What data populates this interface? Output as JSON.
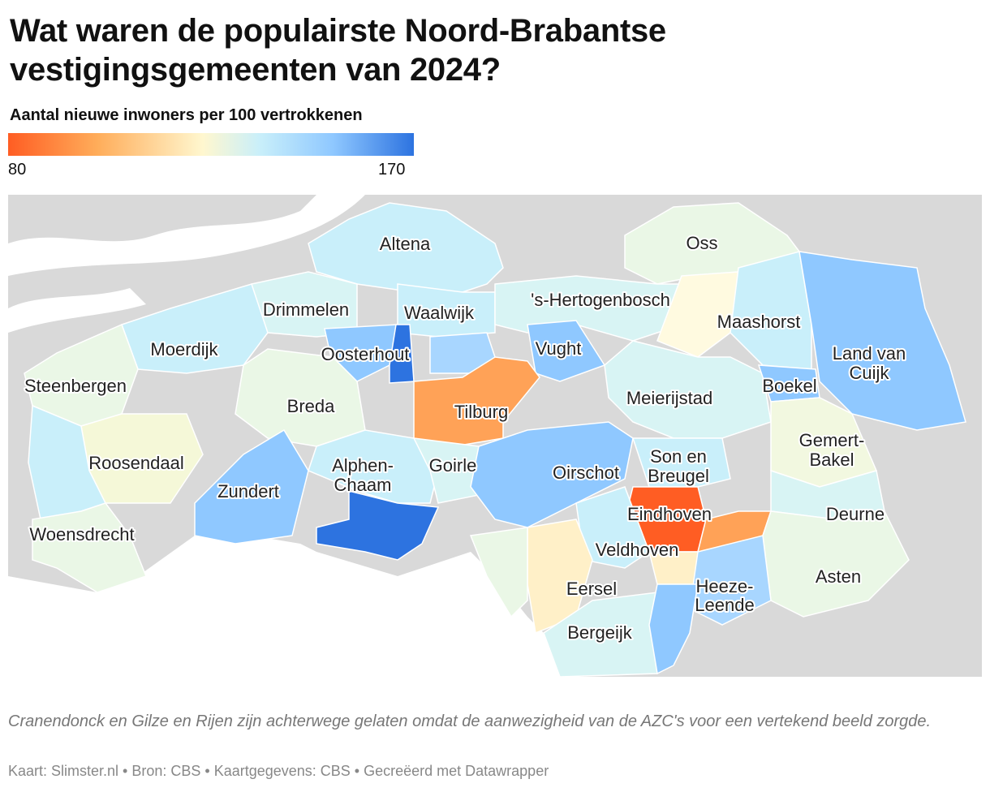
{
  "header": {
    "title": "Wat waren de populairste Noord-Brabantse vestigingsgemeenten van 2024?",
    "subtitle": "Aantal nieuwe inwoners per 100 vertrokkenen"
  },
  "legend": {
    "min": "80",
    "max": "170",
    "colors": [
      "#ff5d23",
      "#ffad5a",
      "#fff7cf",
      "#c9effa",
      "#8fc8ff",
      "#2d73e0"
    ]
  },
  "map": {
    "background_color": "#d9d9d9",
    "water_color": "#ffffff",
    "labels": {
      "altena": "Altena",
      "oss": "Oss",
      "drimmelen": "Drimmelen",
      "waalwijk": "Waalwijk",
      "hertogenbosch": "'s-Hertogenbosch",
      "maashorst": "Maashorst",
      "moerdijk": "Moerdijk",
      "oosterhout": "Oosterhout",
      "vught": "Vught",
      "land_van_cuijk_1": "Land van",
      "land_van_cuijk_2": "Cuijk",
      "steenbergen": "Steenbergen",
      "breda": "Breda",
      "tilburg": "Tilburg",
      "meierijstad": "Meierijstad",
      "boekel": "Boekel",
      "gemert_bakel_1": "Gemert-",
      "gemert_bakel_2": "Bakel",
      "roosendaal": "Roosendaal",
      "alphen_chaam_1": "Alphen-",
      "alphen_chaam_2": "Chaam",
      "goirle": "Goirle",
      "oirschot": "Oirschot",
      "son_en_breugel_1": "Son en",
      "son_en_breugel_2": "Breugel",
      "zundert": "Zundert",
      "eindhoven": "Eindhoven",
      "deurne": "Deurne",
      "woensdrecht": "Woensdrecht",
      "veldhoven": "Veldhoven",
      "asten": "Asten",
      "eersel": "Eersel",
      "heeze_leende_1": "Heeze-",
      "heeze_leende_2": "Leende",
      "bergeijk": "Bergeijk"
    }
  },
  "note": "Cranendonck en Gilze en Rijen zijn achterwege gelaten omdat de aanwezigheid van de AZC's voor een vertekend beeld zorgde.",
  "footer": "Kaart: Slimster.nl • Bron: CBS • Kaartgegevens: CBS • Gecreëerd met Datawrapper"
}
